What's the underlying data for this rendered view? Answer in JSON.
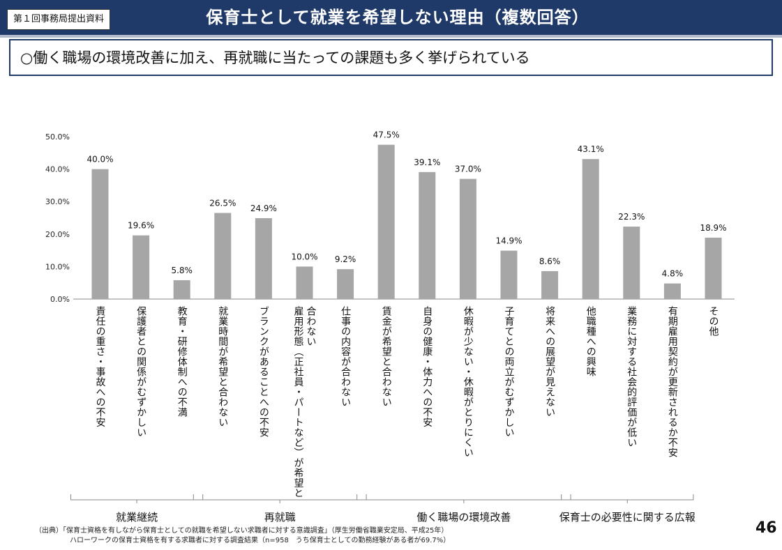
{
  "header": {
    "doc_label": "第１回事務局提出資料",
    "title": "保育士として就業を希望しない理由（複数回答）"
  },
  "summary": "○働く職場の環境改善に加え、再就職に当たっての課題も多く挙げられている",
  "chart_data": {
    "type": "bar",
    "title": "",
    "xlabel": "",
    "ylabel": "",
    "ylim": [
      0,
      50
    ],
    "yticks": [
      "0.0%",
      "10.0%",
      "20.0%",
      "30.0%",
      "40.0%",
      "50.0%"
    ],
    "grid": false,
    "color": "#a6a6a6",
    "categories": [
      "責任の重さ・事故への不安",
      "保護者との関係がむずかしい",
      "教育・研修体制への不満",
      "就業時間が希望と合わない",
      "ブランクがあることへの不安",
      "雇用形態（正社員・パートなど）が希望と合わない",
      "仕事の内容が合わない",
      "賃金が希望と合わない",
      "自身の健康・体力への不安",
      "休暇が少ない・休暇がとりにくい",
      "子育てとの両立がむずかしい",
      "将来への展望が見えない",
      "他職種への興味",
      "業務に対する社会的評価が低い",
      "有期雇用契約が更新されるか不安",
      "その他"
    ],
    "category_lines": [
      [
        "責任の重さ・事故への不安"
      ],
      [
        "保護者との関係がむずかしい"
      ],
      [
        "教育・研修体制への不満"
      ],
      [
        "就業時間が希望と合わない"
      ],
      [
        "ブランクがあることへの不安"
      ],
      [
        "雇用形態（正社員・パートなど）が希望と",
        "合わない"
      ],
      [
        "仕事の内容が合わない"
      ],
      [
        "賃金が希望と合わない"
      ],
      [
        "自身の健康・体力への不安"
      ],
      [
        "休暇が少ない・休暇がとりにくい"
      ],
      [
        "子育てとの両立がむずかしい"
      ],
      [
        "将来への展望が見えない"
      ],
      [
        "他職種への興味"
      ],
      [
        "業務に対する社会的評価が低い"
      ],
      [
        "有期雇用契約が更新されるか不安"
      ],
      [
        "その他"
      ]
    ],
    "values": [
      40.0,
      19.6,
      5.8,
      26.5,
      24.9,
      10.0,
      9.2,
      47.5,
      39.1,
      37.0,
      14.9,
      8.6,
      43.1,
      22.3,
      4.8,
      18.9
    ],
    "value_labels": [
      "40.0%",
      "19.6%",
      "5.8%",
      "26.5%",
      "24.9%",
      "10.0%",
      "9.2%",
      "47.5%",
      "39.1%",
      "37.0%",
      "14.9%",
      "8.6%",
      "43.1%",
      "22.3%",
      "4.8%",
      "18.9%"
    ],
    "groups": [
      {
        "label": "就業継続",
        "from": 0,
        "to": 2
      },
      {
        "label": "再就職",
        "from": 3,
        "to": 6
      },
      {
        "label": "働く職場の環境改善",
        "from": 7,
        "to": 11
      },
      {
        "label": "保育士の必要性に関する広報",
        "from": 12,
        "to": 14
      }
    ]
  },
  "source": {
    "line1": "（出典）「保育士資格を有しながら保育士としての就職を希望しない求職者に対する意識調査」（厚生労働省職業安定局、平成25年）",
    "line2": "ハローワークの保育士資格を有する求職者に対する調査結果（n=958　うち保育士としての勤務経験がある者が69.7%）"
  },
  "page_number": "46"
}
